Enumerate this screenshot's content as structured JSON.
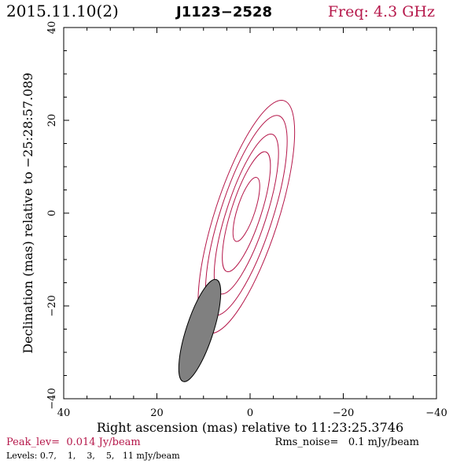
{
  "header": {
    "date": "2015.11.10(2)",
    "source": "J1123−2528",
    "freq": "Freq: 4.3 GHz"
  },
  "colors": {
    "accent": "#b5174a",
    "contour": "#b5174a",
    "beam_fill": "#808080",
    "ink": "#000000"
  },
  "chart_data": {
    "type": "contour",
    "xlabel": "Right ascension (mas) relative to 11:23:25.3746",
    "ylabel": "Declination (mas) relative to −25:28:57.089",
    "xlim": [
      40,
      -40
    ],
    "ylim": [
      -40,
      40
    ],
    "x_ticks": [
      40,
      20,
      0,
      -20,
      -40
    ],
    "y_ticks": [
      -40,
      -20,
      0,
      20,
      40
    ],
    "x_tick_labels": [
      "40",
      "20",
      "0",
      "−20",
      "−40"
    ],
    "y_tick_labels": [
      "−40",
      "−20",
      "0",
      "20",
      "40"
    ],
    "contours": [
      {
        "level": 0.7,
        "center": [
          0.8,
          -0.8
        ],
        "major": 26.2,
        "minor": 6.8,
        "pa_deg": 18
      },
      {
        "level": 1,
        "center": [
          0.8,
          -0.5
        ],
        "major": 22.5,
        "minor": 5.6,
        "pa_deg": 18
      },
      {
        "level": 3,
        "center": [
          0.8,
          -0.2
        ],
        "major": 18.0,
        "minor": 4.3,
        "pa_deg": 18
      },
      {
        "level": 5,
        "center": [
          0.8,
          0.3
        ],
        "major": 13.5,
        "minor": 3.2,
        "pa_deg": 18
      },
      {
        "level": 11,
        "center": [
          0.8,
          0.8
        ],
        "major": 7.2,
        "minor": 1.9,
        "pa_deg": 18
      }
    ],
    "beam": {
      "center": [
        10.8,
        -25.3
      ],
      "major": 11.5,
      "minor": 2.9,
      "pa_deg": 18
    }
  },
  "footer": {
    "peak": "Peak_lev=  0.014 Jy/beam",
    "rms": "Rms_noise=   0.1 mJy/beam",
    "levels": "Levels: 0.7,    1,    3,    5,   11 mJy/beam"
  }
}
